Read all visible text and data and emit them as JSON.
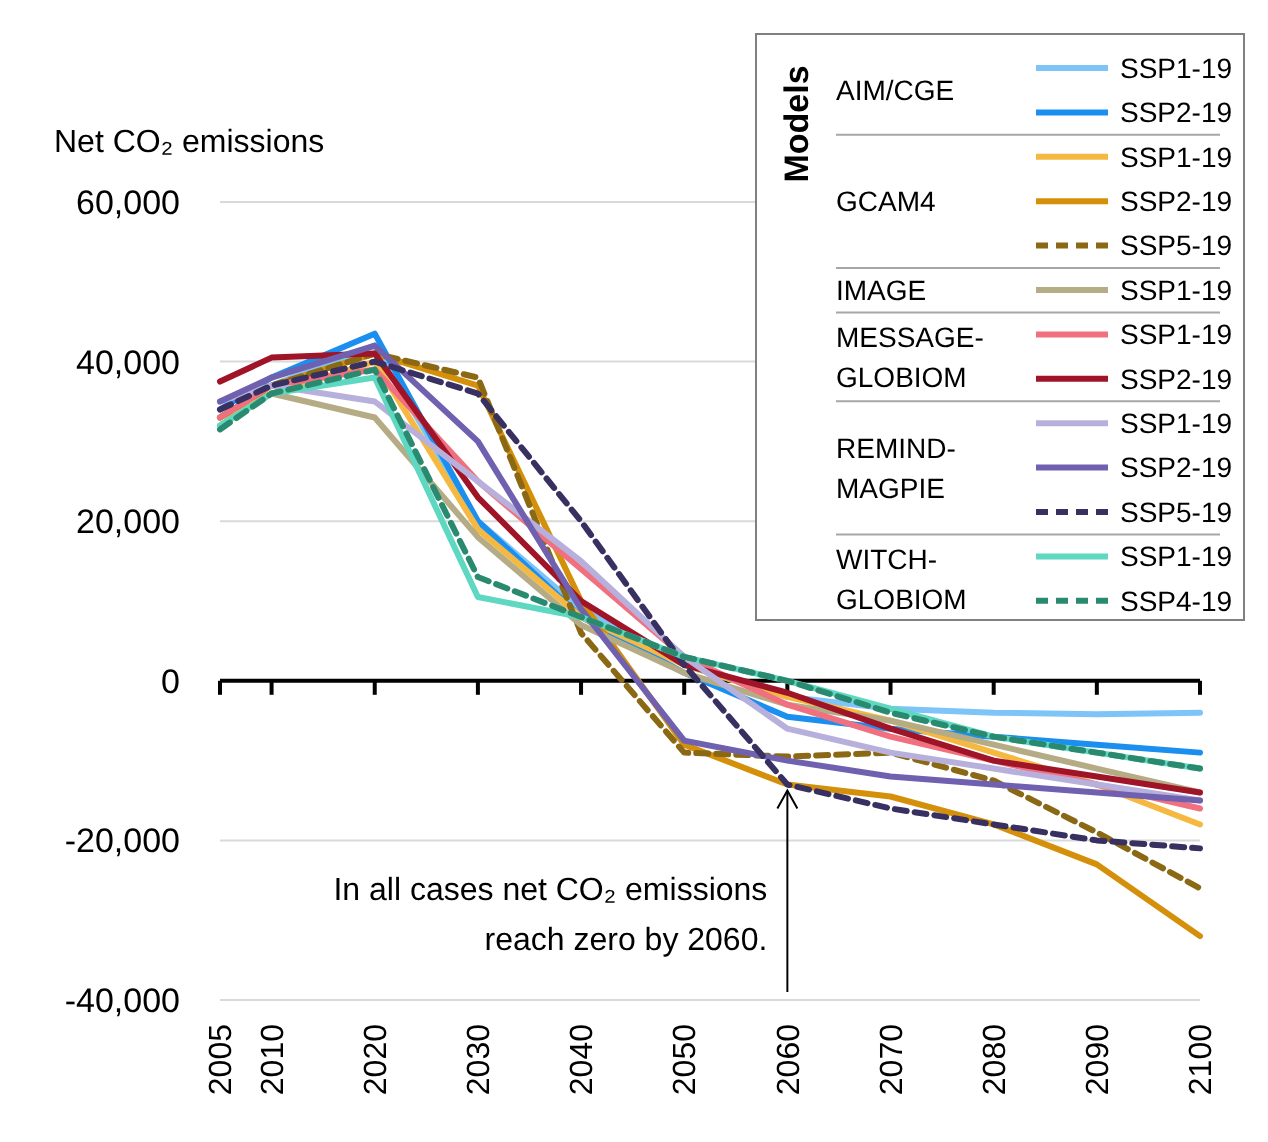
{
  "chart_data": {
    "type": "line",
    "ylabel": "Net CO₂ emissions",
    "legend_title": "Models",
    "legend": "top right",
    "grid": "y",
    "line_style": "solid",
    "marker": "none",
    "x": [
      2005,
      2010,
      2020,
      2030,
      2040,
      2050,
      2060,
      2070,
      2080,
      2090,
      2100
    ],
    "xlim": [
      2005,
      2100
    ],
    "xticks": [
      2005,
      2010,
      2020,
      2030,
      2040,
      2050,
      2060,
      2070,
      2080,
      2090,
      2100
    ],
    "ylim": [
      -40000,
      60000
    ],
    "yticks": [
      {
        "value": -40000,
        "label": "-40,000"
      },
      {
        "value": -20000,
        "label": "-20,000"
      },
      {
        "value": 0,
        "label": "0"
      },
      {
        "value": 20000,
        "label": "20,000"
      },
      {
        "value": 40000,
        "label": "40,000"
      },
      {
        "value": 60000,
        "label": "60,000"
      }
    ],
    "annotations": [
      {
        "text": "In all cases net CO₂ emissions reach zero by 2060.",
        "x": 2060,
        "y": -13000
      },
      "AIM/CGE",
      "GCAM4",
      "IMAGE",
      "MESSAGE-GLOBIOM",
      "REMIND-MAGPIE",
      "WITCH-GLOBIOM"
    ],
    "series": [
      {
        "name": "SSP1-19",
        "color": "#7fc4f8",
        "values": [
          35000,
          37000,
          42000,
          20000,
          9000,
          2000,
          -2000,
          -3500,
          -4000,
          -4200,
          -4000
        ]
      },
      {
        "name": "SSP2-19",
        "color": "#1a8ff0",
        "values": [
          34000,
          38000,
          43500,
          20000,
          8000,
          1000,
          -4500,
          -6000,
          -7000,
          -8000,
          -9000
        ]
      },
      {
        "name": "SSP1-19",
        "color": "#f5b942",
        "values": [
          33000,
          36000,
          40000,
          19000,
          8000,
          2000,
          -2000,
          -5000,
          -9000,
          -13000,
          -18000
        ]
      },
      {
        "name": "SSP2-19",
        "color": "#d4900a",
        "values": [
          33000,
          37000,
          41000,
          37000,
          10000,
          -8000,
          -13000,
          -14500,
          -18000,
          -23000,
          -32000
        ]
      },
      {
        "name": "SSP5-19",
        "color": "#8b6914",
        "line_style": "dashed",
        "values": [
          33000,
          37000,
          41000,
          38000,
          6000,
          -9000,
          -9500,
          -9000,
          -12500,
          -19000,
          -26000
        ]
      },
      {
        "name": "SSP1-19",
        "color": "#b5ac86",
        "values": [
          32000,
          36000,
          33000,
          18000,
          7000,
          1000,
          -3000,
          -5000,
          -8000,
          -11000,
          -14000
        ]
      },
      {
        "name": "SSP1-19",
        "color": "#f07080",
        "values": [
          33000,
          37000,
          39000,
          25000,
          14000,
          3000,
          -3000,
          -7000,
          -10000,
          -13000,
          -16000
        ]
      },
      {
        "name": "SSP2-19",
        "color": "#a01428",
        "values": [
          37500,
          40500,
          41000,
          23000,
          10000,
          2000,
          -1500,
          -6000,
          -10000,
          -12000,
          -14000
        ]
      },
      {
        "name": "SSP1-19",
        "color": "#b8b0dc",
        "values": [
          35000,
          37000,
          35000,
          25000,
          15000,
          3000,
          -6000,
          -9000,
          -11000,
          -13000,
          -15000
        ]
      },
      {
        "name": "SSP2-19",
        "color": "#7060b0",
        "values": [
          35000,
          38000,
          42000,
          30000,
          9000,
          -7500,
          -10000,
          -12000,
          -13000,
          -14000,
          -15000
        ]
      },
      {
        "name": "SSP5-19",
        "color": "#383060",
        "line_style": "dashed",
        "values": [
          34000,
          37000,
          40000,
          36000,
          20000,
          2000,
          -13000,
          -16000,
          -18000,
          -20000,
          -21000
        ]
      },
      {
        "name": "SSP1-19",
        "color": "#5ed8c0",
        "values": [
          32000,
          36000,
          38000,
          10500,
          8000,
          3000,
          0,
          -3500,
          -7000,
          -9000,
          -11000
        ]
      },
      {
        "name": "SSP4-19",
        "color": "#2a8a70",
        "line_style": "dashed",
        "values": [
          31500,
          36000,
          39000,
          13000,
          8000,
          3000,
          0,
          -4000,
          -7000,
          -9000,
          -11000
        ]
      }
    ]
  }
}
